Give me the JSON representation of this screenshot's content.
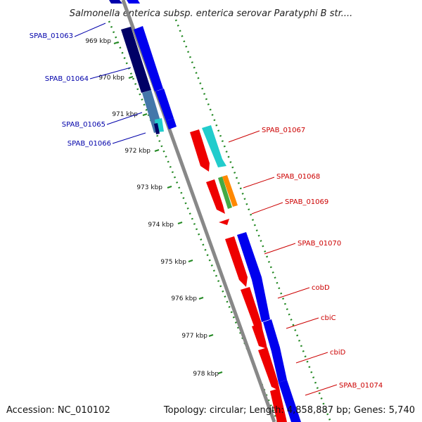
{
  "title": "Salmonella enterica subsp. enterica serovar Paratyphi B str....",
  "footer": {
    "accession": "Accession: NC_010102",
    "summary": "Topology: circular; Length: 4,858,887 bp; Genes: 5,740"
  },
  "ticks": [
    "969 kbp",
    "970 kbp",
    "971 kbp",
    "972 kbp",
    "973 kbp",
    "974 kbp",
    "975 kbp",
    "976 kbp",
    "977 kbp",
    "978 kbp"
  ],
  "genes": [
    {
      "label": "SPAB_01063",
      "strand": "reverse",
      "color": "#0000aa"
    },
    {
      "label": "SPAB_01064",
      "strand": "reverse",
      "color": "#0000aa"
    },
    {
      "label": "SPAB_01065",
      "strand": "reverse",
      "color": "#0000aa"
    },
    {
      "label": "SPAB_01066",
      "strand": "reverse",
      "color": "#0000aa"
    },
    {
      "label": "SPAB_01067",
      "strand": "forward",
      "color": "#cc0000"
    },
    {
      "label": "SPAB_01068",
      "strand": "forward",
      "color": "#cc0000"
    },
    {
      "label": "SPAB_01069",
      "strand": "forward",
      "color": "#cc0000"
    },
    {
      "label": "SPAB_01070",
      "strand": "forward",
      "color": "#cc0000"
    },
    {
      "label": "cobD",
      "strand": "forward",
      "color": "#cc0000"
    },
    {
      "label": "cbiC",
      "strand": "forward",
      "color": "#cc0000"
    },
    {
      "label": "cbiD",
      "strand": "forward",
      "color": "#cc0000"
    },
    {
      "label": "SPAB_01074",
      "strand": "forward",
      "color": "#cc0000"
    }
  ],
  "colors": {
    "backbone": "#888888",
    "tick_dots": "#228822",
    "cds_red": "#ee0000",
    "cds_blue": "#0000ee",
    "cds_navy": "#000066",
    "cds_cyan": "#22cccc",
    "cds_green": "#44aa44",
    "cds_orange": "#ff8800",
    "cds_steel": "#4477aa"
  }
}
